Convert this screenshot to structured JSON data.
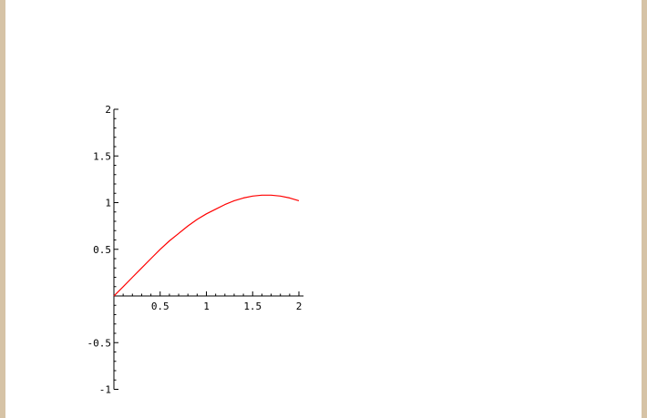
{
  "colors": {
    "background": "#ffffff",
    "frame": "#d6c3a6",
    "axis": "#000000",
    "series": "#ff0000"
  },
  "chart_data": {
    "type": "line",
    "title": "",
    "xlabel": "",
    "ylabel": "",
    "xlim": [
      0,
      2.05
    ],
    "ylim": [
      -1,
      2
    ],
    "grid": false,
    "x_ticks": [
      0.5,
      1,
      1.5,
      2
    ],
    "x_tick_labels": [
      "0.5",
      "1",
      "1.5",
      "2"
    ],
    "y_ticks": [
      -1,
      -0.5,
      0.5,
      1,
      1.5,
      2
    ],
    "y_tick_labels": [
      "-1",
      "-0.5",
      "0.5",
      "1",
      "1.5",
      "2"
    ],
    "series": [
      {
        "color": "#ff0000",
        "x": [
          0,
          0.1,
          0.2,
          0.3,
          0.4,
          0.5,
          0.6,
          0.7,
          0.8,
          0.9,
          1.0,
          1.1,
          1.2,
          1.3,
          1.4,
          1.5,
          1.6,
          1.7,
          1.8,
          1.9,
          2.0
        ],
        "y": [
          0,
          0.1,
          0.2,
          0.3,
          0.4,
          0.5,
          0.59,
          0.67,
          0.75,
          0.82,
          0.88,
          0.93,
          0.98,
          1.02,
          1.05,
          1.07,
          1.08,
          1.08,
          1.07,
          1.05,
          1.02
        ]
      }
    ]
  }
}
